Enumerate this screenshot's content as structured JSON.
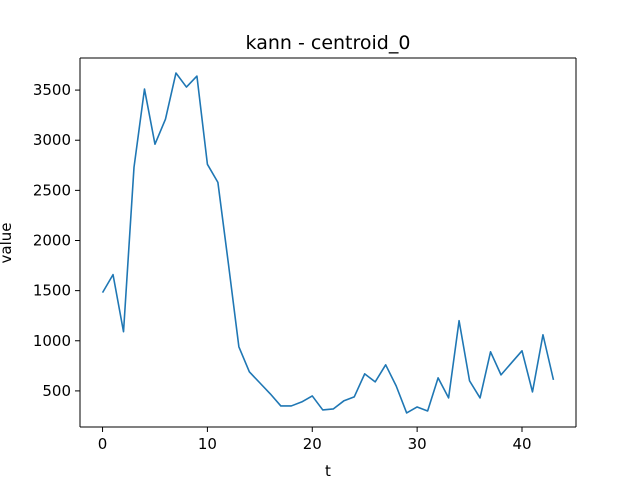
{
  "chart_data": {
    "type": "line",
    "title": "kann - centroid_0",
    "xlabel": "t",
    "ylabel": "value",
    "xlim": [
      -2.15,
      45.15
    ],
    "ylim": [
      140,
      3820
    ],
    "xticks": [
      0,
      10,
      20,
      30,
      40
    ],
    "yticks": [
      500,
      1000,
      1500,
      2000,
      2500,
      3000,
      3500
    ],
    "grid": false,
    "series": [
      {
        "color": "#1f77b4",
        "x": [
          0,
          1,
          2,
          3,
          4,
          5,
          6,
          7,
          8,
          9,
          10,
          11,
          12,
          13,
          14,
          15,
          16,
          17,
          18,
          19,
          20,
          21,
          22,
          23,
          24,
          25,
          26,
          27,
          28,
          29,
          30,
          31,
          32,
          33,
          34,
          35,
          36,
          37,
          38,
          39,
          40,
          41,
          42,
          43
        ],
        "values": [
          1480,
          1660,
          1090,
          2730,
          3510,
          2960,
          3210,
          3670,
          3530,
          3640,
          2760,
          2580,
          1770,
          940,
          690,
          580,
          470,
          350,
          350,
          390,
          450,
          310,
          320,
          400,
          440,
          670,
          590,
          760,
          550,
          280,
          340,
          300,
          630,
          430,
          1200,
          600,
          430,
          890,
          660,
          780,
          900,
          490,
          1060,
          610
        ]
      }
    ]
  }
}
